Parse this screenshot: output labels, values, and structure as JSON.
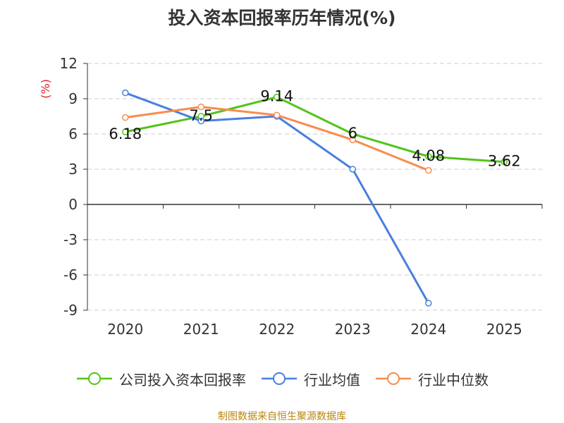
{
  "chart_data": {
    "type": "line",
    "title": "投入资本回报率历年情况(%)",
    "ylabel": "(%)",
    "xlabel": "",
    "categories": [
      "2020",
      "2021",
      "2022",
      "2023",
      "2024",
      "2025"
    ],
    "ylim": [
      -9,
      12
    ],
    "yticks": [
      12,
      9,
      6,
      3,
      0,
      -3,
      -6,
      -9
    ],
    "grid": true,
    "legend_position": "bottom",
    "series": [
      {
        "name": "公司投入资本回报率",
        "color": "#52c41a",
        "values": [
          6.18,
          7.5,
          9.14,
          6,
          4.08,
          3.62
        ],
        "labels": [
          "6.18",
          "7.5",
          "9.14",
          "6",
          "4.08",
          "3.62"
        ]
      },
      {
        "name": "行业均值",
        "color": "#4a7fdd",
        "values": [
          9.5,
          7.1,
          7.5,
          3.0,
          -8.4,
          null
        ]
      },
      {
        "name": "行业中位数",
        "color": "#f78c4f",
        "values": [
          7.4,
          8.3,
          7.6,
          5.5,
          2.9,
          null
        ]
      }
    ]
  },
  "source": "制图数据来自恒生聚源数据库"
}
